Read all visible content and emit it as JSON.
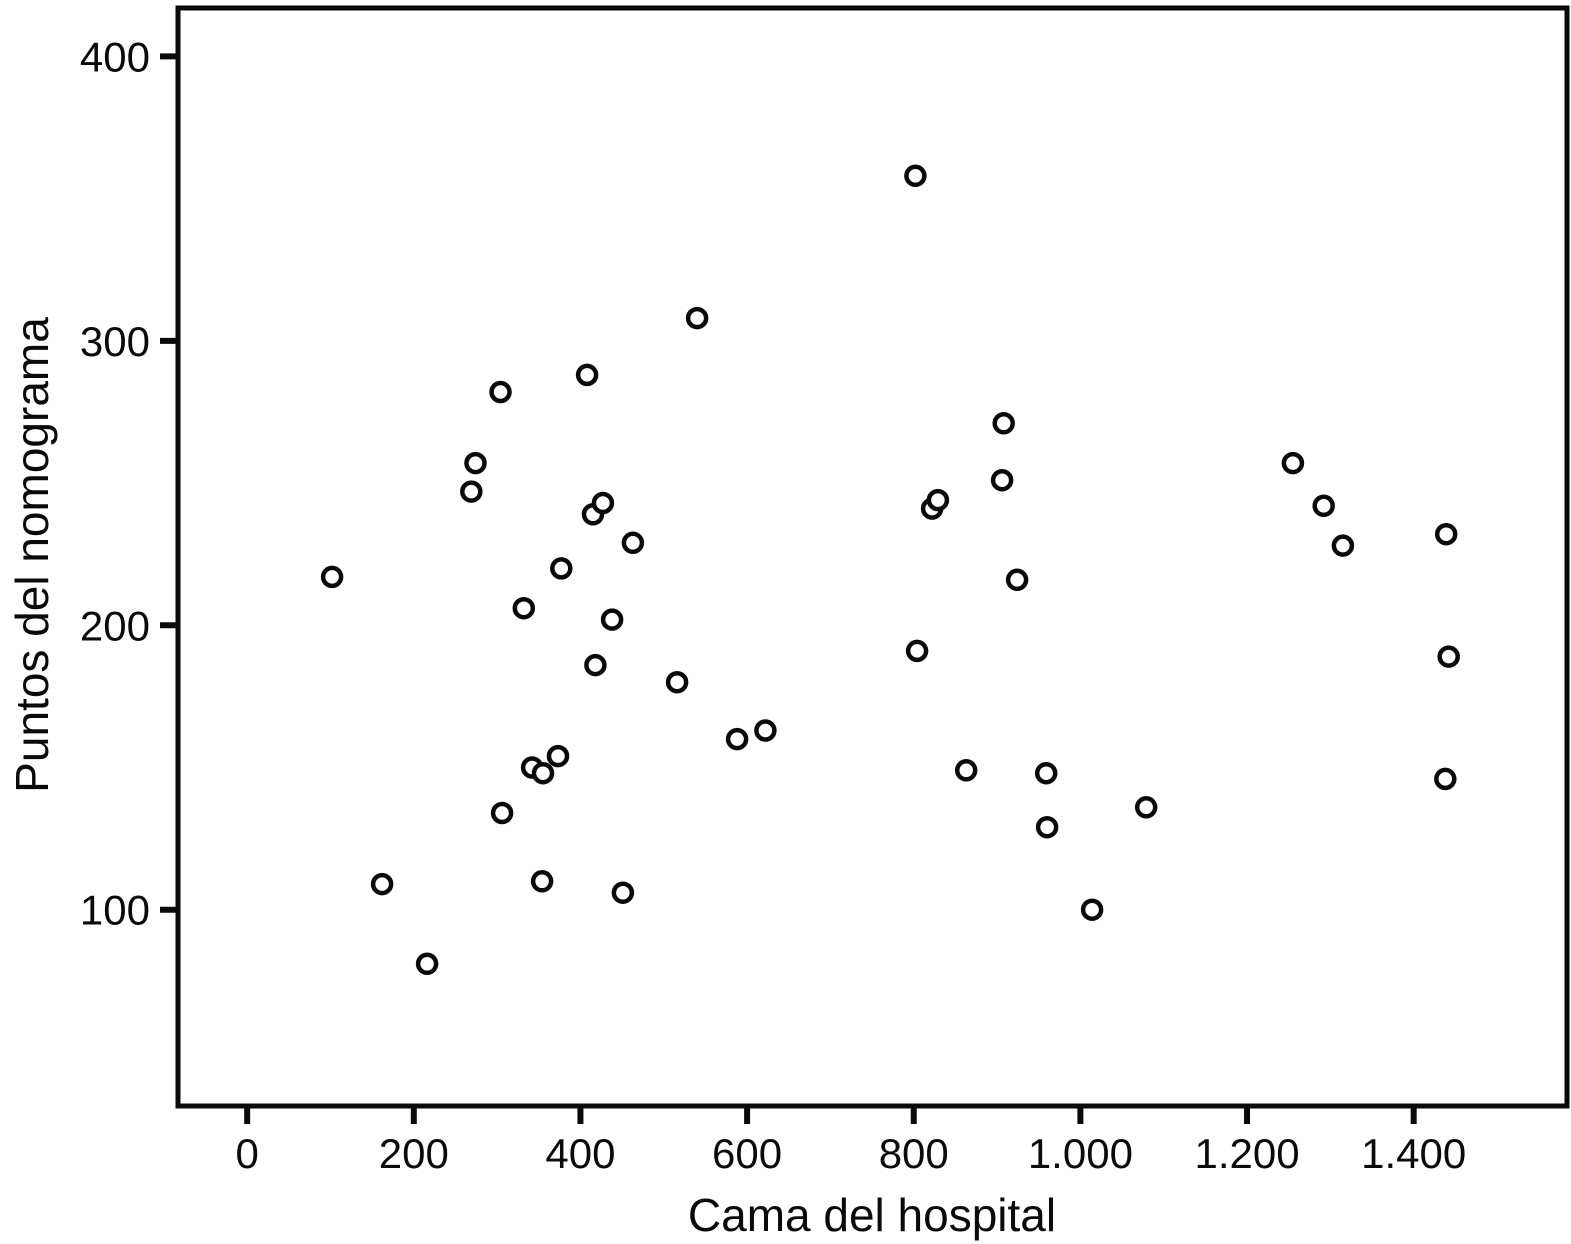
{
  "figure": {
    "background": "#ffffff",
    "ink_color": "#0a0a0a"
  },
  "chart_data": {
    "type": "scatter",
    "title": "",
    "xlabel": "Cama del hospital",
    "ylabel": "Puntos del nomograma",
    "grid": false,
    "legend_position": "none",
    "marker": "open-circle",
    "xlim": [
      -83,
      1584
    ],
    "ylim": [
      31,
      417
    ],
    "x_ticks": {
      "values": [
        0,
        200,
        400,
        600,
        800,
        1000,
        1200,
        1400
      ],
      "labels": [
        "0",
        "200",
        "400",
        "600",
        "800",
        "1.000",
        "1.200",
        "1.400"
      ]
    },
    "y_ticks": {
      "values": [
        100,
        200,
        300,
        400
      ],
      "labels": [
        "100",
        "200",
        "300",
        "400"
      ]
    },
    "points": [
      [
        102,
        217
      ],
      [
        162,
        109
      ],
      [
        216,
        81
      ],
      [
        269,
        247
      ],
      [
        274,
        257
      ],
      [
        304,
        282
      ],
      [
        306,
        134
      ],
      [
        332,
        206
      ],
      [
        342,
        150
      ],
      [
        354,
        110
      ],
      [
        355,
        148
      ],
      [
        373,
        154
      ],
      [
        377,
        220
      ],
      [
        408,
        288
      ],
      [
        415,
        239
      ],
      [
        418,
        186
      ],
      [
        427,
        243
      ],
      [
        438,
        202
      ],
      [
        451,
        106
      ],
      [
        463,
        229
      ],
      [
        516,
        180
      ],
      [
        540,
        308
      ],
      [
        588,
        160
      ],
      [
        622,
        163
      ],
      [
        802,
        358
      ],
      [
        804,
        191
      ],
      [
        822,
        241
      ],
      [
        829,
        244
      ],
      [
        863,
        149
      ],
      [
        906,
        251
      ],
      [
        908,
        271
      ],
      [
        924,
        216
      ],
      [
        959,
        148
      ],
      [
        960,
        129
      ],
      [
        1014,
        100
      ],
      [
        1079,
        136
      ],
      [
        1255,
        257
      ],
      [
        1292,
        242
      ],
      [
        1315,
        228
      ],
      [
        1438,
        146
      ],
      [
        1439,
        232
      ],
      [
        1442,
        189
      ]
    ]
  }
}
